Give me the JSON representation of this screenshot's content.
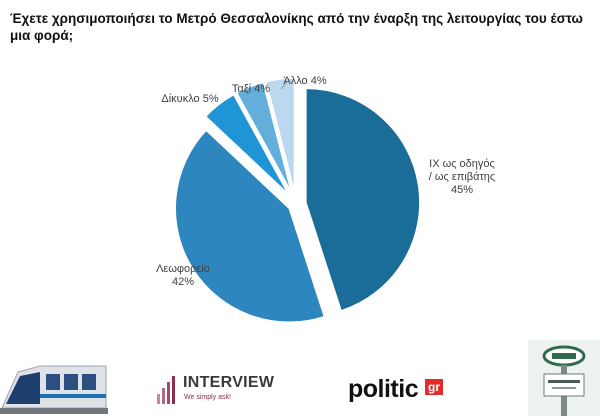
{
  "question": "Έχετε χρησιμοποιήσει το Μετρό Θεσσαλονίκης από την έναρξη της λειτουργίας του έστω μια φορά;",
  "chart_data": {
    "type": "pie",
    "title": "Έχετε χρησιμοποιήσει το Μετρό Θεσσαλονίκης από την έναρξη της λειτουργίας του έστω μια φορά;",
    "slices": [
      {
        "label": "ΙΧ ως οδηγός / ως επιβάτης",
        "label_lines": [
          "ΙΧ ως οδηγός",
          "/ ως επιβάτης",
          "45%"
        ],
        "value": 45,
        "color": "#1a6d99"
      },
      {
        "label": "Λεωφορείο",
        "label_lines": [
          "Λεωφορείο",
          "42%"
        ],
        "value": 42,
        "color": "#2e86bf"
      },
      {
        "label": "Δίκυκλο",
        "label_lines": [
          "Δίκυκλο 5%"
        ],
        "value": 5,
        "color": "#1f95d6"
      },
      {
        "label": "Ταξί",
        "label_lines": [
          "Ταξί 4%"
        ],
        "value": 4,
        "color": "#64aedb"
      },
      {
        "label": "Άλλο",
        "label_lines": [
          "Άλλο 4%"
        ],
        "value": 4,
        "color": "#bcd8ee"
      }
    ],
    "legend": "none"
  },
  "footer": {
    "interview_name": "INTERVIEW",
    "interview_tagline": "We simply ask!",
    "politic_name": "politic",
    "politic_suffix": "gr",
    "train_icon": "metro-train-image",
    "station_icon": "metro-station-sign-image"
  }
}
